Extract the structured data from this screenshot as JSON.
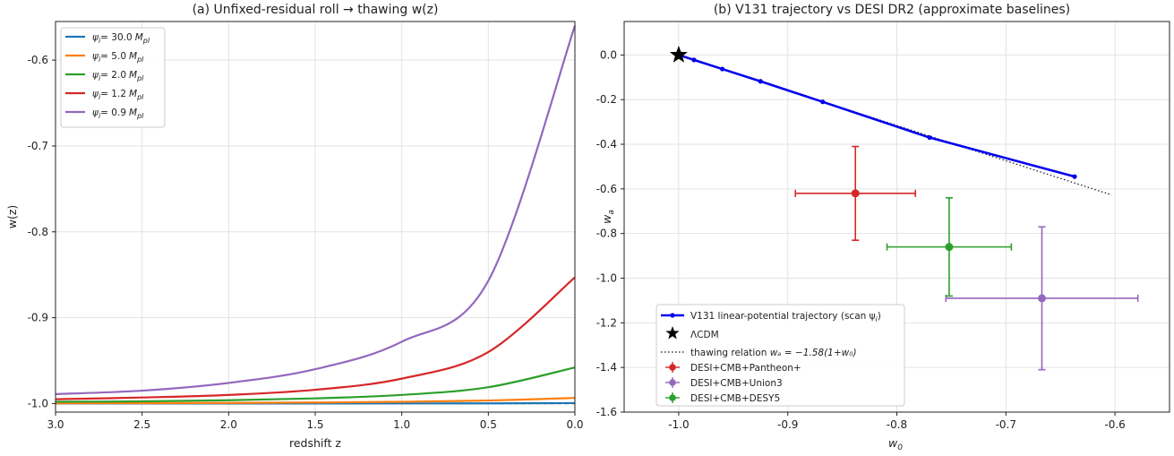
{
  "chart_data": [
    {
      "id": "panel-a",
      "type": "line",
      "title": "(a) Unfixed-residual roll → thawing w(z)",
      "xlabel": "redshift z",
      "ylabel": "w(z)",
      "xlim": [
        3.0,
        0.0
      ],
      "ylim": [
        -1.01,
        -0.555
      ],
      "x_ticks": [
        3.0,
        2.5,
        2.0,
        1.5,
        1.0,
        0.5,
        0.0
      ],
      "x_tick_labels": [
        "3.0",
        "2.5",
        "2.0",
        "1.5",
        "1.0",
        "0.5",
        "0.0"
      ],
      "y_ticks": [
        -1.0,
        -0.9,
        -0.8,
        -0.7,
        -0.6
      ],
      "y_tick_labels": [
        "-1.0",
        "-0.9",
        "-0.8",
        "-0.7",
        "-0.6"
      ],
      "grid": true,
      "legend_position": "top-left",
      "reference_line": {
        "y": -1.0,
        "color": "#111111",
        "style": "dashed"
      },
      "series": [
        {
          "legend_prefix": "ψ",
          "legend_sub": "i",
          "legend_value": "= 30.0",
          "legend_unit": "M",
          "legend_unit_sub": "pl",
          "color": "#1f77b4",
          "x": [
            3.0,
            2.5,
            2.0,
            1.5,
            1.0,
            0.5,
            0.0
          ],
          "y": [
            -1.0,
            -1.0,
            -1.0,
            -1.0,
            -0.9999,
            -0.9998,
            -0.9995
          ]
        },
        {
          "legend_prefix": "ψ",
          "legend_sub": "i",
          "legend_value": "= 5.0",
          "legend_unit": "M",
          "legend_unit_sub": "pl",
          "color": "#ff7f0e",
          "x": [
            3.0,
            2.5,
            2.0,
            1.5,
            1.0,
            0.5,
            0.0
          ],
          "y": [
            -0.9997,
            -0.9996,
            -0.9993,
            -0.9988,
            -0.998,
            -0.9965,
            -0.9935
          ]
        },
        {
          "legend_prefix": "ψ",
          "legend_sub": "i",
          "legend_value": "= 2.0",
          "legend_unit": "M",
          "legend_unit_sub": "pl",
          "color": "#2ca02c",
          "x": [
            3.0,
            2.5,
            2.0,
            1.5,
            1.0,
            0.5,
            0.0
          ],
          "y": [
            -0.998,
            -0.9975,
            -0.9962,
            -0.994,
            -0.99,
            -0.981,
            -0.958
          ]
        },
        {
          "legend_prefix": "ψ",
          "legend_sub": "i",
          "legend_value": "= 1.2",
          "legend_unit": "M",
          "legend_unit_sub": "pl",
          "color": "#d62728",
          "x": [
            3.0,
            2.5,
            2.0,
            1.5,
            1.0,
            0.5,
            0.0
          ],
          "y": [
            -0.995,
            -0.993,
            -0.99,
            -0.984,
            -0.971,
            -0.94,
            -0.853
          ]
        },
        {
          "legend_prefix": "ψ",
          "legend_sub": "i",
          "legend_value": "= 0.9",
          "legend_unit": "M",
          "legend_unit_sub": "pl",
          "color": "#9467bd",
          "x": [
            3.0,
            2.5,
            2.0,
            1.5,
            1.0,
            0.5,
            0.0
          ],
          "y": [
            -0.989,
            -0.985,
            -0.976,
            -0.96,
            -0.928,
            -0.857,
            -0.56
          ]
        }
      ]
    },
    {
      "id": "panel-b",
      "type": "scatter",
      "title": "(b) V131 trajectory vs DESI DR2 (approximate baselines)",
      "xlabel": "w",
      "xlabel_sub": "0",
      "ylabel": "w",
      "ylabel_sub": "a",
      "xlim": [
        -1.05,
        -0.55
      ],
      "ylim": [
        -1.6,
        0.15
      ],
      "x_ticks": [
        -1.0,
        -0.9,
        -0.8,
        -0.7,
        -0.6
      ],
      "x_tick_labels": [
        "-1.0",
        "-0.9",
        "-0.8",
        "-0.7",
        "-0.6"
      ],
      "y_ticks": [
        0.0,
        -0.2,
        -0.4,
        -0.6,
        -0.8,
        -1.0,
        -1.2,
        -1.4,
        -1.6
      ],
      "y_tick_labels": [
        "0.0",
        "-0.2",
        "-0.4",
        "-0.6",
        "-0.8",
        "-1.0",
        "-1.2",
        "-1.4",
        "-1.6"
      ],
      "grid": true,
      "legend_position": "bottom-left",
      "trajectory": {
        "legend": "V131 linear-potential trajectory (scan ψ",
        "legend_sub": "i",
        "legend_end": ")",
        "color": "#0000ee",
        "w0": [
          -1.0,
          -0.986,
          -0.96,
          -0.925,
          -0.868,
          -0.77,
          -0.637
        ],
        "wa": [
          0.0,
          -0.022,
          -0.063,
          -0.118,
          -0.21,
          -0.37,
          -0.545
        ]
      },
      "lcdm": {
        "legend": "ΛCDM",
        "w0": -1.0,
        "wa": 0.0,
        "color": "#000000"
      },
      "thawing_relation": {
        "legend_text": "thawing relation ",
        "legend_math": "wₐ = −1.58(1+w₀)",
        "slope": -1.58,
        "w0_range": [
          -1.0,
          -0.603
        ],
        "color": "#111111"
      },
      "points": [
        {
          "name": "DESI+CMB+Pantheon+",
          "color": "#d62728",
          "w0": -0.838,
          "wa": -0.62,
          "w0_err": 0.055,
          "wa_err": 0.21
        },
        {
          "name": "DESI+CMB+Union3",
          "color": "#9467bd",
          "w0": -0.667,
          "wa": -1.09,
          "w0_err": 0.088,
          "wa_err": 0.32
        },
        {
          "name": "DESI+CMB+DESY5",
          "color": "#2ca02c",
          "w0": -0.752,
          "wa": -0.86,
          "w0_err": 0.057,
          "wa_err": 0.22
        }
      ]
    }
  ]
}
